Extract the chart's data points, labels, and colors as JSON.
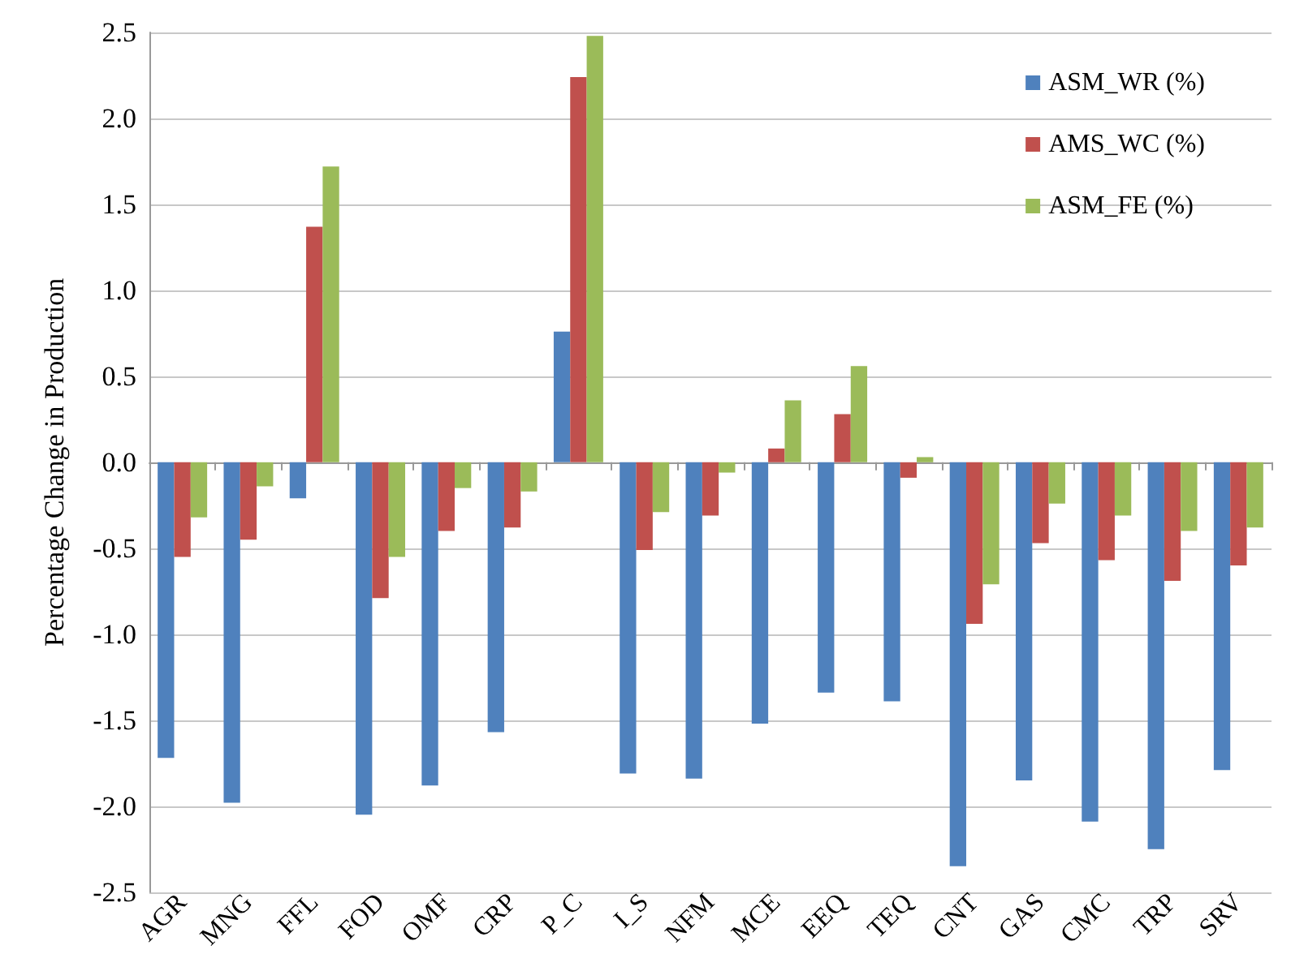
{
  "chart_data": {
    "type": "bar",
    "ylabel": "Percentage Change in Production",
    "categories": [
      "AGR",
      "MNG",
      "FFL",
      "FOD",
      "OMF",
      "CRP",
      "P_C",
      "I_S",
      "NFM",
      "MCE",
      "EEQ",
      "TEQ",
      "CNT",
      "GAS",
      "CMC",
      "TRP",
      "SRV"
    ],
    "series": [
      {
        "name": "ASM_WR (%)",
        "color": "#4f81bd",
        "values": [
          -1.72,
          -1.98,
          -0.21,
          -2.05,
          -1.88,
          -1.57,
          0.76,
          -1.81,
          -1.84,
          -1.52,
          -1.34,
          -1.39,
          -2.35,
          -1.85,
          -2.09,
          -2.25,
          -1.79
        ]
      },
      {
        "name": "AMS_WC (%)",
        "color": "#c0504d",
        "values": [
          -0.55,
          -0.45,
          1.37,
          -0.79,
          -0.4,
          -0.38,
          2.24,
          -0.51,
          -0.31,
          0.08,
          0.28,
          -0.09,
          -0.94,
          -0.47,
          -0.57,
          -0.69,
          -0.6
        ]
      },
      {
        "name": "ASM_FE (%)",
        "color": "#9bbb59",
        "values": [
          -0.32,
          -0.14,
          1.72,
          -0.55,
          -0.15,
          -0.17,
          2.48,
          -0.29,
          -0.06,
          0.36,
          0.56,
          0.03,
          -0.71,
          -0.24,
          -0.31,
          -0.4,
          -0.38
        ]
      }
    ],
    "ylim": [
      -2.5,
      2.5
    ],
    "yticks": [
      {
        "value": -2.5,
        "label": "-2.5"
      },
      {
        "value": -2.0,
        "label": "-2.0"
      },
      {
        "value": -1.5,
        "label": "-1.5"
      },
      {
        "value": -1.0,
        "label": "-1.0"
      },
      {
        "value": -0.5,
        "label": "-0.5"
      },
      {
        "value": 0,
        "label": "0.0"
      },
      {
        "value": 0.5,
        "label": "0.5"
      },
      {
        "value": 1.0,
        "label": "1.0"
      },
      {
        "value": 1.5,
        "label": "1.5"
      },
      {
        "value": 2.0,
        "label": "2.0"
      },
      {
        "value": 2.5,
        "label": "2.5"
      }
    ],
    "grid": "y",
    "legend": "top right"
  }
}
